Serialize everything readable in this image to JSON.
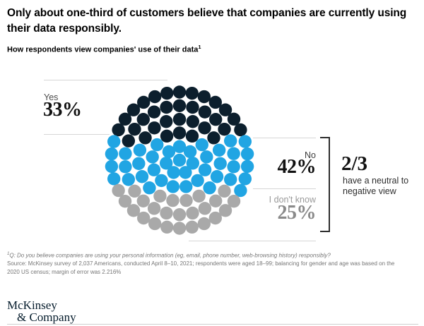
{
  "title": {
    "line1": "Only about one-third of customers believe that companies are currently using",
    "line2": "their data responsibly."
  },
  "subtitle": {
    "text": "How respondents view companies' use of their data",
    "sup": "1"
  },
  "chart_data": {
    "type": "unit_dot_pictogram",
    "total_units": 100,
    "segments": [
      {
        "label": "Yes",
        "value": 33,
        "display_value": "33%",
        "color": "#0c1f2d",
        "label_side": "left"
      },
      {
        "label": "No",
        "value": 42,
        "display_value": "42%",
        "color": "#21a5e3",
        "label_side": "right"
      },
      {
        "label": "I don't know",
        "value": 25,
        "display_value": "25%",
        "color": "#a9a9a9",
        "label_side": "right"
      }
    ],
    "annotation": {
      "fraction": "2/3",
      "line1": "have a neutral to",
      "line2": "negative view"
    }
  },
  "footnote": {
    "sup": "1",
    "question": "Q: Do you believe companies are using your personal information (eg, email, phone number, web-browsing history) responsibly?",
    "source_line1": "Source: McKinsey survey of 2,037 Americans, conducted April 8–10, 2021; respondents were aged 18–99; balancing for gender and age was based on the",
    "source_line2": "2020 US census; margin of error was 2.216%"
  },
  "logo": {
    "line1": "McKinsey",
    "line2": "& Company"
  },
  "colors": {
    "accent_dark": "#0c1f2d",
    "accent_blue": "#21a5e3",
    "neutral_gray": "#a9a9a9",
    "line_gray": "#d6d6d6"
  }
}
